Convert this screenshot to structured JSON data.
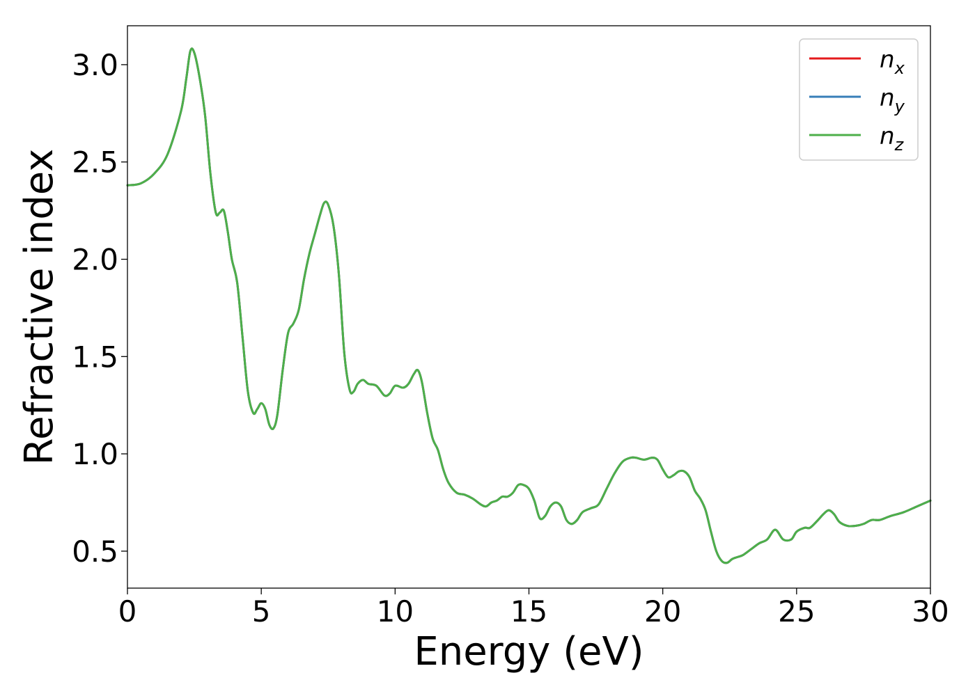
{
  "chart_data": {
    "type": "line",
    "title": "",
    "xlabel": "Energy (eV)",
    "ylabel": "Refractive index",
    "xlim": [
      0,
      30
    ],
    "ylim": [
      0.31,
      3.2
    ],
    "xticks": [
      0,
      5,
      10,
      15,
      20,
      25,
      30
    ],
    "xtick_labels": [
      "0",
      "5",
      "10",
      "15",
      "20",
      "25",
      "30"
    ],
    "yticks": [
      0.5,
      1.0,
      1.5,
      2.0,
      2.5,
      3.0
    ],
    "ytick_labels": [
      "0.5",
      "1.0",
      "1.5",
      "2.0",
      "2.5",
      "3.0"
    ],
    "grid": false,
    "legend_position": "top-right",
    "x": [
      0,
      0.5,
      1.0,
      1.5,
      2.0,
      2.2,
      2.35,
      2.5,
      2.7,
      2.9,
      3.1,
      3.3,
      3.45,
      3.6,
      3.75,
      3.9,
      4.1,
      4.3,
      4.5,
      4.7,
      4.85,
      5.0,
      5.15,
      5.3,
      5.45,
      5.6,
      5.8,
      6.0,
      6.2,
      6.4,
      6.6,
      6.8,
      7.0,
      7.2,
      7.35,
      7.5,
      7.7,
      7.9,
      8.1,
      8.3,
      8.45,
      8.6,
      8.8,
      9.0,
      9.3,
      9.6,
      9.8,
      10.0,
      10.3,
      10.5,
      10.7,
      10.85,
      11.0,
      11.2,
      11.4,
      11.6,
      11.8,
      12.0,
      12.3,
      12.6,
      12.9,
      13.2,
      13.4,
      13.6,
      13.8,
      14.0,
      14.2,
      14.4,
      14.6,
      14.8,
      15.0,
      15.2,
      15.4,
      15.6,
      15.8,
      16.0,
      16.2,
      16.4,
      16.6,
      16.8,
      17.0,
      17.3,
      17.6,
      17.9,
      18.2,
      18.5,
      18.8,
      19.0,
      19.3,
      19.6,
      19.8,
      20.0,
      20.2,
      20.4,
      20.6,
      20.8,
      21.0,
      21.2,
      21.4,
      21.6,
      21.8,
      22.0,
      22.2,
      22.4,
      22.6,
      22.8,
      23.0,
      23.3,
      23.6,
      23.9,
      24.2,
      24.5,
      24.8,
      25.0,
      25.3,
      25.5,
      25.8,
      26.0,
      26.2,
      26.4,
      26.6,
      26.9,
      27.2,
      27.5,
      27.8,
      28.1,
      28.5,
      29.0,
      29.5,
      30.0
    ],
    "series": [
      {
        "name": "n_x",
        "color": "#e41a1c",
        "values": [
          2.38,
          2.39,
          2.44,
          2.54,
          2.76,
          2.93,
          3.07,
          3.06,
          2.93,
          2.74,
          2.44,
          2.24,
          2.24,
          2.25,
          2.14,
          2.0,
          1.88,
          1.6,
          1.32,
          1.21,
          1.23,
          1.26,
          1.23,
          1.15,
          1.13,
          1.2,
          1.43,
          1.62,
          1.67,
          1.74,
          1.9,
          2.03,
          2.13,
          2.23,
          2.29,
          2.28,
          2.17,
          1.92,
          1.52,
          1.33,
          1.32,
          1.36,
          1.38,
          1.36,
          1.35,
          1.3,
          1.31,
          1.35,
          1.34,
          1.36,
          1.41,
          1.43,
          1.37,
          1.21,
          1.08,
          1.02,
          0.92,
          0.85,
          0.8,
          0.79,
          0.77,
          0.74,
          0.73,
          0.75,
          0.76,
          0.78,
          0.78,
          0.8,
          0.84,
          0.84,
          0.82,
          0.76,
          0.67,
          0.68,
          0.73,
          0.75,
          0.73,
          0.66,
          0.64,
          0.66,
          0.7,
          0.72,
          0.74,
          0.82,
          0.9,
          0.96,
          0.98,
          0.98,
          0.97,
          0.98,
          0.97,
          0.92,
          0.88,
          0.89,
          0.91,
          0.91,
          0.88,
          0.81,
          0.77,
          0.71,
          0.6,
          0.5,
          0.45,
          0.44,
          0.46,
          0.47,
          0.48,
          0.51,
          0.54,
          0.56,
          0.61,
          0.56,
          0.56,
          0.6,
          0.62,
          0.62,
          0.66,
          0.69,
          0.71,
          0.69,
          0.65,
          0.63,
          0.63,
          0.64,
          0.66,
          0.66,
          0.68,
          0.7,
          0.73,
          0.76
        ]
      },
      {
        "name": "n_y",
        "color": "#377eb8",
        "values": [
          2.38,
          2.39,
          2.44,
          2.54,
          2.76,
          2.93,
          3.07,
          3.06,
          2.93,
          2.74,
          2.44,
          2.24,
          2.24,
          2.25,
          2.14,
          2.0,
          1.88,
          1.6,
          1.32,
          1.21,
          1.23,
          1.26,
          1.23,
          1.15,
          1.13,
          1.2,
          1.43,
          1.62,
          1.67,
          1.74,
          1.9,
          2.03,
          2.13,
          2.23,
          2.29,
          2.28,
          2.17,
          1.92,
          1.52,
          1.33,
          1.32,
          1.36,
          1.38,
          1.36,
          1.35,
          1.3,
          1.31,
          1.35,
          1.34,
          1.36,
          1.41,
          1.43,
          1.37,
          1.21,
          1.08,
          1.02,
          0.92,
          0.85,
          0.8,
          0.79,
          0.77,
          0.74,
          0.73,
          0.75,
          0.76,
          0.78,
          0.78,
          0.8,
          0.84,
          0.84,
          0.82,
          0.76,
          0.67,
          0.68,
          0.73,
          0.75,
          0.73,
          0.66,
          0.64,
          0.66,
          0.7,
          0.72,
          0.74,
          0.82,
          0.9,
          0.96,
          0.98,
          0.98,
          0.97,
          0.98,
          0.97,
          0.92,
          0.88,
          0.89,
          0.91,
          0.91,
          0.88,
          0.81,
          0.77,
          0.71,
          0.6,
          0.5,
          0.45,
          0.44,
          0.46,
          0.47,
          0.48,
          0.51,
          0.54,
          0.56,
          0.61,
          0.56,
          0.56,
          0.6,
          0.62,
          0.62,
          0.66,
          0.69,
          0.71,
          0.69,
          0.65,
          0.63,
          0.63,
          0.64,
          0.66,
          0.66,
          0.68,
          0.7,
          0.73,
          0.76
        ]
      },
      {
        "name": "n_z",
        "color": "#4daf4a",
        "values": [
          2.38,
          2.39,
          2.44,
          2.54,
          2.76,
          2.93,
          3.07,
          3.06,
          2.93,
          2.74,
          2.44,
          2.24,
          2.24,
          2.25,
          2.14,
          2.0,
          1.88,
          1.6,
          1.32,
          1.21,
          1.23,
          1.26,
          1.23,
          1.15,
          1.13,
          1.2,
          1.43,
          1.62,
          1.67,
          1.74,
          1.9,
          2.03,
          2.13,
          2.23,
          2.29,
          2.28,
          2.17,
          1.92,
          1.52,
          1.33,
          1.32,
          1.36,
          1.38,
          1.36,
          1.35,
          1.3,
          1.31,
          1.35,
          1.34,
          1.36,
          1.41,
          1.43,
          1.37,
          1.21,
          1.08,
          1.02,
          0.92,
          0.85,
          0.8,
          0.79,
          0.77,
          0.74,
          0.73,
          0.75,
          0.76,
          0.78,
          0.78,
          0.8,
          0.84,
          0.84,
          0.82,
          0.76,
          0.67,
          0.68,
          0.73,
          0.75,
          0.73,
          0.66,
          0.64,
          0.66,
          0.7,
          0.72,
          0.74,
          0.82,
          0.9,
          0.96,
          0.98,
          0.98,
          0.97,
          0.98,
          0.97,
          0.92,
          0.88,
          0.89,
          0.91,
          0.91,
          0.88,
          0.81,
          0.77,
          0.71,
          0.6,
          0.5,
          0.45,
          0.44,
          0.46,
          0.47,
          0.48,
          0.51,
          0.54,
          0.56,
          0.61,
          0.56,
          0.56,
          0.6,
          0.62,
          0.62,
          0.66,
          0.69,
          0.71,
          0.69,
          0.65,
          0.63,
          0.63,
          0.64,
          0.66,
          0.66,
          0.68,
          0.7,
          0.73,
          0.76
        ]
      }
    ],
    "legend": [
      {
        "base": "n",
        "sub": "x",
        "color": "#e41a1c"
      },
      {
        "base": "n",
        "sub": "y",
        "color": "#377eb8"
      },
      {
        "base": "n",
        "sub": "z",
        "color": "#4daf4a"
      }
    ]
  }
}
